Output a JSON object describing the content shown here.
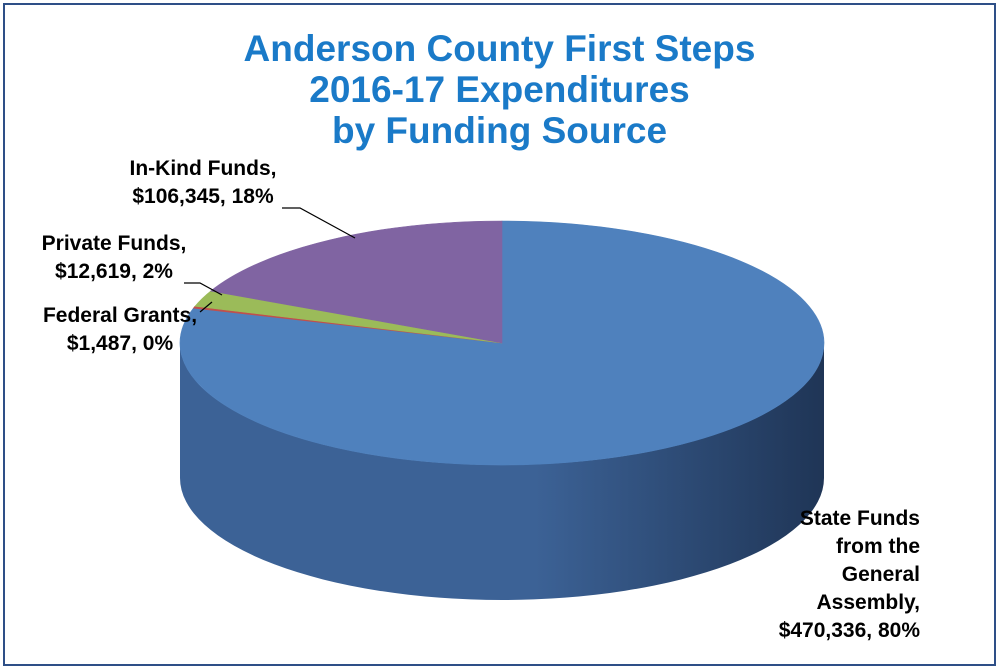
{
  "chart_data": {
    "type": "pie",
    "title_lines": [
      "Anderson County First Steps",
      "2016-17 Expenditures",
      "by Funding Source"
    ],
    "slices": [
      {
        "name": "State Funds from the General Assembly",
        "value": 470336,
        "percent": 80,
        "color": "#4f81bd",
        "side_color": "#3c6296",
        "label_lines": [
          "State Funds",
          "from the",
          "General",
          "Assembly,",
          "$470,336, 80%"
        ]
      },
      {
        "name": "Federal Grants",
        "value": 1487,
        "percent": 0,
        "color": "#c0504d",
        "side_color": "#8c3a38",
        "label_lines": [
          "Federal Grants,",
          "$1,487, 0%"
        ]
      },
      {
        "name": "Private Funds",
        "value": 12619,
        "percent": 2,
        "color": "#9bbb59",
        "side_color": "#728a42",
        "label_lines": [
          "Private Funds,",
          "$12,619, 2%"
        ]
      },
      {
        "name": "In-Kind Funds",
        "value": 106345,
        "percent": 18,
        "color": "#8064a2",
        "side_color": "#5e4a78",
        "label_lines": [
          "In-Kind Funds,",
          "$106,345, 18%"
        ]
      }
    ],
    "legend": "none",
    "style": "3d-pie"
  }
}
